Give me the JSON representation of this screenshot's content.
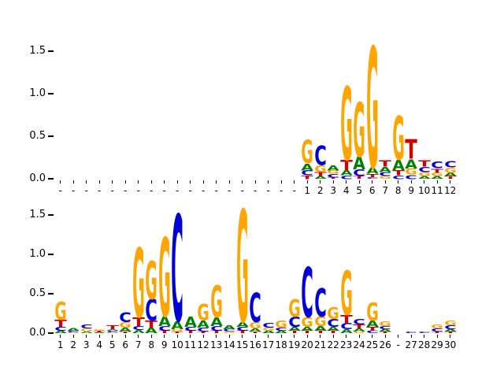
{
  "figure": {
    "title": ""
  },
  "colors": {
    "A": "#008000",
    "C": "#0000d6",
    "G": "#ffa500",
    "T": "#d40000"
  },
  "chart_data": [
    {
      "type": "sequence-logo",
      "panel": "top",
      "ylabel": "",
      "xlabel": "",
      "ylim": [
        0,
        1.75
      ],
      "yticks": [
        "0.0",
        "0.5",
        "1.0",
        "1.5"
      ],
      "columns": [
        {
          "label": "-",
          "stack": []
        },
        {
          "label": "-",
          "stack": []
        },
        {
          "label": "-",
          "stack": []
        },
        {
          "label": "-",
          "stack": []
        },
        {
          "label": "-",
          "stack": []
        },
        {
          "label": "-",
          "stack": []
        },
        {
          "label": "-",
          "stack": []
        },
        {
          "label": "-",
          "stack": []
        },
        {
          "label": "-",
          "stack": []
        },
        {
          "label": "-",
          "stack": []
        },
        {
          "label": "-",
          "stack": []
        },
        {
          "label": "-",
          "stack": []
        },
        {
          "label": "-",
          "stack": []
        },
        {
          "label": "-",
          "stack": []
        },
        {
          "label": "-",
          "stack": []
        },
        {
          "label": "-",
          "stack": []
        },
        {
          "label": "-",
          "stack": []
        },
        {
          "label": "-",
          "stack": []
        },
        {
          "label": "-",
          "stack": []
        },
        {
          "label": "1",
          "stack": [
            [
              "T",
              0.04
            ],
            [
              "C",
              0.06
            ],
            [
              "A",
              0.08
            ],
            [
              "G",
              0.27
            ]
          ]
        },
        {
          "label": "2",
          "stack": [
            [
              "A",
              0.03
            ],
            [
              "T",
              0.05
            ],
            [
              "G",
              0.08
            ],
            [
              "C",
              0.23
            ]
          ]
        },
        {
          "label": "3",
          "stack": [
            [
              "T",
              0.02
            ],
            [
              "C",
              0.04
            ],
            [
              "G",
              0.04
            ],
            [
              "A",
              0.06
            ]
          ]
        },
        {
          "label": "4",
          "stack": [
            [
              "C",
              0.04
            ],
            [
              "A",
              0.06
            ],
            [
              "T",
              0.12
            ],
            [
              "G",
              0.86
            ]
          ]
        },
        {
          "label": "5",
          "stack": [
            [
              "T",
              0.03
            ],
            [
              "C",
              0.08
            ],
            [
              "A",
              0.15
            ],
            [
              "G",
              0.64
            ]
          ]
        },
        {
          "label": "6",
          "stack": [
            [
              "C",
              0.02
            ],
            [
              "T",
              0.04
            ],
            [
              "A",
              0.07
            ],
            [
              "G",
              1.42
            ]
          ]
        },
        {
          "label": "7",
          "stack": [
            [
              "G",
              0.03
            ],
            [
              "C",
              0.05
            ],
            [
              "A",
              0.06
            ],
            [
              "T",
              0.07
            ]
          ]
        },
        {
          "label": "8",
          "stack": [
            [
              "C",
              0.04
            ],
            [
              "T",
              0.06
            ],
            [
              "A",
              0.12
            ],
            [
              "G",
              0.51
            ]
          ]
        },
        {
          "label": "9",
          "stack": [
            [
              "C",
              0.05
            ],
            [
              "G",
              0.07
            ],
            [
              "A",
              0.11
            ],
            [
              "T",
              0.23
            ]
          ]
        },
        {
          "label": "10",
          "stack": [
            [
              "A",
              0.03
            ],
            [
              "G",
              0.05
            ],
            [
              "C",
              0.06
            ],
            [
              "T",
              0.07
            ]
          ]
        },
        {
          "label": "11",
          "stack": [
            [
              "A",
              0.03
            ],
            [
              "G",
              0.04
            ],
            [
              "T",
              0.05
            ],
            [
              "C",
              0.08
            ]
          ]
        },
        {
          "label": "12",
          "stack": [
            [
              "T",
              0.03
            ],
            [
              "A",
              0.04
            ],
            [
              "G",
              0.06
            ],
            [
              "C",
              0.07
            ]
          ]
        }
      ]
    },
    {
      "type": "sequence-logo",
      "panel": "bottom",
      "ylabel": "",
      "xlabel": "",
      "ylim": [
        0,
        1.75
      ],
      "yticks": [
        "0.0",
        "0.5",
        "1.0",
        "1.5"
      ],
      "columns": [
        {
          "label": "1",
          "stack": [
            [
              "A",
              0.03
            ],
            [
              "C",
              0.05
            ],
            [
              "T",
              0.09
            ],
            [
              "G",
              0.23
            ]
          ]
        },
        {
          "label": "2",
          "stack": [
            [
              "G",
              0.01
            ],
            [
              "C",
              0.02
            ],
            [
              "A",
              0.03
            ]
          ]
        },
        {
          "label": "3",
          "stack": [
            [
              "A",
              0.02
            ],
            [
              "G",
              0.04
            ],
            [
              "C",
              0.05
            ]
          ]
        },
        {
          "label": "4",
          "stack": [
            [
              "A",
              0.01
            ],
            [
              "T",
              0.02
            ],
            [
              "G",
              0.02
            ]
          ]
        },
        {
          "label": "5",
          "stack": [
            [
              "G",
              0.01
            ],
            [
              "C",
              0.02
            ],
            [
              "A",
              0.02
            ],
            [
              "T",
              0.05
            ]
          ]
        },
        {
          "label": "6",
          "stack": [
            [
              "T",
              0.02
            ],
            [
              "A",
              0.05
            ],
            [
              "G",
              0.07
            ],
            [
              "C",
              0.12
            ]
          ]
        },
        {
          "label": "7",
          "stack": [
            [
              "A",
              0.04
            ],
            [
              "C",
              0.05
            ],
            [
              "T",
              0.11
            ],
            [
              "G",
              0.88
            ]
          ]
        },
        {
          "label": "8",
          "stack": [
            [
              "A",
              0.07
            ],
            [
              "T",
              0.09
            ],
            [
              "C",
              0.27
            ],
            [
              "G",
              0.48
            ]
          ]
        },
        {
          "label": "9",
          "stack": [
            [
              "T",
              0.03
            ],
            [
              "C",
              0.06
            ],
            [
              "A",
              0.12
            ],
            [
              "G",
              1.0
            ]
          ]
        },
        {
          "label": "10",
          "stack": [
            [
              "T",
              0.02
            ],
            [
              "G",
              0.03
            ],
            [
              "A",
              0.1
            ],
            [
              "C",
              1.35
            ]
          ]
        },
        {
          "label": "11",
          "stack": [
            [
              "T",
              0.03
            ],
            [
              "C",
              0.05
            ],
            [
              "A",
              0.13
            ]
          ]
        },
        {
          "label": "12",
          "stack": [
            [
              "T",
              0.02
            ],
            [
              "C",
              0.05
            ],
            [
              "A",
              0.09
            ],
            [
              "G",
              0.21
            ]
          ]
        },
        {
          "label": "13",
          "stack": [
            [
              "T",
              0.03
            ],
            [
              "C",
              0.06
            ],
            [
              "A",
              0.11
            ],
            [
              "G",
              0.4
            ]
          ]
        },
        {
          "label": "14",
          "stack": [
            [
              "G",
              0.02
            ],
            [
              "C",
              0.03
            ],
            [
              "A",
              0.05
            ]
          ]
        },
        {
          "label": "15",
          "stack": [
            [
              "T",
              0.03
            ],
            [
              "C",
              0.05
            ],
            [
              "A",
              0.06
            ],
            [
              "G",
              1.42
            ]
          ]
        },
        {
          "label": "16",
          "stack": [
            [
              "T",
              0.02
            ],
            [
              "A",
              0.04
            ],
            [
              "G",
              0.08
            ],
            [
              "C",
              0.37
            ]
          ]
        },
        {
          "label": "17",
          "stack": [
            [
              "A",
              0.03
            ],
            [
              "G",
              0.04
            ],
            [
              "C",
              0.06
            ]
          ]
        },
        {
          "label": "18",
          "stack": [
            [
              "A",
              0.03
            ],
            [
              "C",
              0.04
            ],
            [
              "G",
              0.09
            ]
          ]
        },
        {
          "label": "19",
          "stack": [
            [
              "T",
              0.03
            ],
            [
              "A",
              0.05
            ],
            [
              "C",
              0.13
            ],
            [
              "G",
              0.22
            ]
          ]
        },
        {
          "label": "20",
          "stack": [
            [
              "T",
              0.03
            ],
            [
              "A",
              0.05
            ],
            [
              "G",
              0.12
            ],
            [
              "C",
              0.63
            ]
          ]
        },
        {
          "label": "21",
          "stack": [
            [
              "T",
              0.03
            ],
            [
              "A",
              0.06
            ],
            [
              "G",
              0.12
            ],
            [
              "C",
              0.36
            ]
          ]
        },
        {
          "label": "22",
          "stack": [
            [
              "T",
              0.03
            ],
            [
              "A",
              0.05
            ],
            [
              "C",
              0.1
            ],
            [
              "G",
              0.15
            ]
          ]
        },
        {
          "label": "23",
          "stack": [
            [
              "A",
              0.05
            ],
            [
              "C",
              0.08
            ],
            [
              "T",
              0.1
            ],
            [
              "G",
              0.56
            ]
          ]
        },
        {
          "label": "24",
          "stack": [
            [
              "G",
              0.02
            ],
            [
              "A",
              0.04
            ],
            [
              "T",
              0.05
            ],
            [
              "C",
              0.07
            ]
          ]
        },
        {
          "label": "25",
          "stack": [
            [
              "C",
              0.03
            ],
            [
              "T",
              0.05
            ],
            [
              "A",
              0.08
            ],
            [
              "G",
              0.23
            ]
          ]
        },
        {
          "label": "26",
          "stack": [
            [
              "T",
              0.02
            ],
            [
              "A",
              0.03
            ],
            [
              "C",
              0.04
            ],
            [
              "G",
              0.06
            ]
          ]
        },
        {
          "label": "-",
          "stack": []
        },
        {
          "label": "27",
          "stack": [
            [
              "C",
              0.02
            ]
          ]
        },
        {
          "label": "28",
          "stack": [
            [
              "C",
              0.02
            ]
          ]
        },
        {
          "label": "29",
          "stack": [
            [
              "T",
              0.02
            ],
            [
              "C",
              0.04
            ],
            [
              "G",
              0.05
            ]
          ]
        },
        {
          "label": "30",
          "stack": [
            [
              "T",
              0.02
            ],
            [
              "A",
              0.03
            ],
            [
              "C",
              0.05
            ],
            [
              "G",
              0.06
            ]
          ]
        }
      ]
    }
  ]
}
